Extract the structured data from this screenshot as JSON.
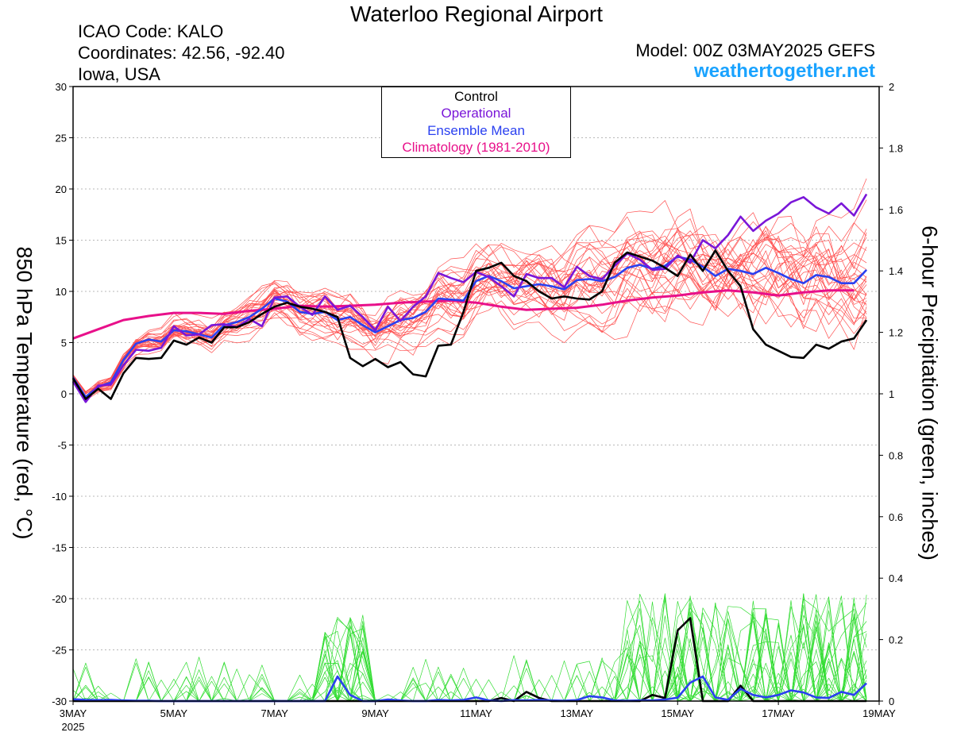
{
  "header": {
    "title": "Waterloo Regional Airport",
    "icao": "ICAO Code: KALO",
    "coordinates": "Coordinates: 42.56, -92.40",
    "region": "Iowa, USA",
    "model": "Model: 00Z 03MAY2025 GEFS",
    "site": "weathertogether.net"
  },
  "colors": {
    "members": "#ff5050",
    "precip_members": "#33dd33",
    "control": "#000000",
    "operational": "#7a16d8",
    "ensemble_mean": "#2a40f0",
    "climatology": "#e8108a",
    "site": "#1aa3ff"
  },
  "chart_data": {
    "type": "line",
    "x_unit": "6-hour steps from 00Z 03MAY2025",
    "x_ticks": [
      {
        "x": 0,
        "label": "3MAY",
        "sub": "2025"
      },
      {
        "x": 8,
        "label": "5MAY"
      },
      {
        "x": 16,
        "label": "7MAY"
      },
      {
        "x": 24,
        "label": "9MAY"
      },
      {
        "x": 32,
        "label": "11MAY"
      },
      {
        "x": 40,
        "label": "13MAY"
      },
      {
        "x": 48,
        "label": "15MAY"
      },
      {
        "x": 56,
        "label": "17MAY"
      },
      {
        "x": 64,
        "label": "19MAY"
      }
    ],
    "xlim": [
      0,
      64
    ],
    "ylabel": "850 hPa Temperature (red, °C)",
    "ylabel2": "6-hour Precipitation (green, inches)",
    "ylim": [
      -30,
      30
    ],
    "y_ticks": [
      30,
      25,
      20,
      15,
      10,
      5,
      0,
      -5,
      -10,
      -15,
      -20,
      -25,
      -30
    ],
    "ylim2": [
      0,
      2
    ],
    "y2_ticks": [
      "2",
      "1.8",
      "1.6",
      "1.4",
      "1.2",
      "1",
      "0.8",
      "0.6",
      "0.4",
      "0.2",
      "0"
    ],
    "legend": {
      "placement": "top-center",
      "entries": [
        "Control",
        "Operational",
        "Ensemble Mean",
        "Climatology (1981-2010)"
      ]
    },
    "series": [
      {
        "name": "Control",
        "axis": "temperature",
        "values": [
          1.5,
          -0.5,
          0.5,
          -0.5,
          2,
          3.5,
          3.4,
          3.5,
          5.2,
          4.8,
          5.5,
          5,
          6.5,
          6.5,
          7,
          7.8,
          8.5,
          8.9,
          8.5,
          8.3,
          8,
          7.5,
          3.5,
          2.7,
          3.4,
          2.6,
          3.1,
          1.9,
          1.7,
          4.7,
          4.8,
          8,
          12,
          12.3,
          12.8,
          11.5,
          11,
          10,
          9.3,
          9.5,
          9.3,
          9.2,
          10,
          12.8,
          13.8,
          13.4,
          13,
          12.3,
          11.5,
          13.6,
          12,
          14,
          12,
          10.5,
          6.3,
          4.8,
          4.2,
          3.6,
          3.5,
          4.8,
          4.4,
          5.1,
          5.4,
          7.2
        ]
      },
      {
        "name": "Operational",
        "axis": "temperature",
        "values": [
          1.2,
          -0.8,
          0.8,
          0.9,
          2.8,
          4.3,
          4.2,
          4.5,
          6.6,
          5.7,
          5.8,
          6.7,
          6.8,
          6.5,
          7.3,
          6.6,
          9.4,
          9.5,
          8.5,
          7.7,
          9.5,
          8.2,
          8.6,
          7.5,
          6.2,
          8.5,
          7.1,
          8.5,
          9.5,
          11.8,
          11.3,
          10.9,
          11.9,
          11.4,
          10.5,
          9.5,
          11.7,
          11.3,
          11.3,
          10.4,
          12.4,
          11.5,
          11.2,
          12.5,
          13.7,
          13.1,
          12.1,
          12.2,
          13.5,
          12.8,
          15,
          14.2,
          15.5,
          17.3,
          15.9,
          16.9,
          17.6,
          18.7,
          19.2,
          18.2,
          17.6,
          18.6,
          17.4,
          19.5
        ]
      },
      {
        "name": "Ensemble Mean",
        "axis": "temperature",
        "values": [
          1.6,
          -0.3,
          0.7,
          1.1,
          3.3,
          4.9,
          5.3,
          5.1,
          6.2,
          6.1,
          5.8,
          5.5,
          6.7,
          7,
          7.5,
          8.3,
          9.3,
          9,
          8,
          7.8,
          8,
          7.2,
          7.5,
          6.7,
          6,
          6.6,
          7.2,
          7.4,
          8,
          9.3,
          9.2,
          9.1,
          11,
          11.5,
          11,
          10.3,
          10.5,
          10.7,
          10.5,
          10.2,
          11.1,
          11.2,
          11,
          11.4,
          12.3,
          12.6,
          12.2,
          12.5,
          13.4,
          13.1,
          12.4,
          11.5,
          12.2,
          12,
          11.7,
          12.3,
          11.8,
          11.2,
          10.8,
          11.6,
          11.4,
          10.8,
          10.8,
          12.1
        ]
      },
      {
        "name": "Climatology (1981-2010)",
        "axis": "temperature",
        "values": [
          5.4,
          6.3,
          7.2,
          7.6,
          7.9,
          7.9,
          7.8,
          8.1,
          8.3,
          8.6,
          8.5,
          8.6,
          8.7,
          8.9,
          9,
          9.1,
          8.9,
          8.5,
          8.2,
          8.3,
          8.4,
          8.7,
          9.1,
          9.4,
          9.6,
          9.9,
          10.1,
          9.9,
          9.6,
          9.9,
          10.1,
          10.1
        ],
        "step": 2
      },
      {
        "name": "Control precipitation",
        "axis": "precipitation",
        "values": [
          0,
          0,
          0,
          0,
          0,
          0,
          0,
          0,
          0,
          0,
          0,
          0,
          0,
          0,
          0,
          0,
          0,
          0,
          0,
          0,
          0,
          0,
          0,
          0,
          0,
          0,
          0,
          0,
          0,
          0,
          0,
          0,
          0,
          0,
          0.01,
          0,
          0.03,
          0.01,
          0,
          0,
          0,
          0,
          0,
          0,
          0,
          0,
          0.02,
          0.01,
          0.23,
          0.27,
          0,
          0,
          0,
          0.05,
          0,
          0,
          0,
          0,
          0,
          0,
          0,
          0,
          0,
          0
        ]
      },
      {
        "name": "Ensemble Mean precipitation",
        "axis": "precipitation",
        "values": [
          0.006,
          0.004,
          0.003,
          0.004,
          0.002,
          0.001,
          0.001,
          0,
          0,
          0,
          0,
          0,
          0,
          0,
          0,
          0,
          0,
          0,
          0,
          0,
          0,
          0.08,
          0.02,
          0,
          0,
          0.005,
          0.002,
          0,
          0,
          0.004,
          0.002,
          0.004,
          0.012,
          0.002,
          0,
          0.003,
          0.002,
          0.004,
          0.002,
          0.001,
          0.003,
          0.016,
          0.012,
          0.002,
          0.001,
          0.002,
          0.002,
          0.005,
          0.011,
          0.06,
          0.08,
          0.012,
          0.004,
          0.04,
          0.02,
          0.012,
          0.02,
          0.035,
          0.028,
          0.012,
          0.01,
          0.03,
          0.02,
          0.058
        ]
      }
    ],
    "members": {
      "count": 30,
      "temperature_spread": "red thin lines around the ensemble mean",
      "precipitation_spread": "green thin lines rising from zero"
    }
  }
}
